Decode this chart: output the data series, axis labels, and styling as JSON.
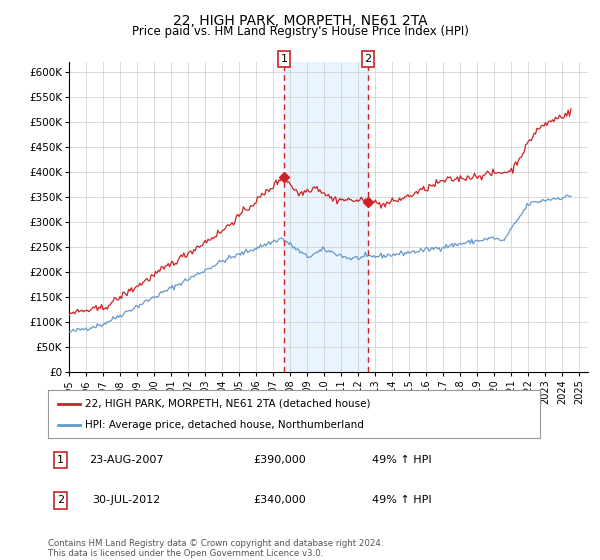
{
  "title": "22, HIGH PARK, MORPETH, NE61 2TA",
  "subtitle": "Price paid vs. HM Land Registry's House Price Index (HPI)",
  "ylim": [
    0,
    620000
  ],
  "yticks": [
    0,
    50000,
    100000,
    150000,
    200000,
    250000,
    300000,
    350000,
    400000,
    450000,
    500000,
    550000,
    600000
  ],
  "ytick_labels": [
    "£0",
    "£50K",
    "£100K",
    "£150K",
    "£200K",
    "£250K",
    "£300K",
    "£350K",
    "£400K",
    "£450K",
    "£500K",
    "£550K",
    "£600K"
  ],
  "xlim_start": 1995.0,
  "xlim_end": 2025.5,
  "xtick_years": [
    1995,
    1996,
    1997,
    1998,
    1999,
    2000,
    2001,
    2002,
    2003,
    2004,
    2005,
    2006,
    2007,
    2008,
    2009,
    2010,
    2011,
    2012,
    2013,
    2014,
    2015,
    2016,
    2017,
    2018,
    2019,
    2020,
    2021,
    2022,
    2023,
    2024,
    2025
  ],
  "hpi_color": "#6699cc",
  "property_color": "#cc2222",
  "bg_color": "#ffffff",
  "grid_color": "#cccccc",
  "sale1_date": "23-AUG-2007",
  "sale1_x": 2007.64,
  "sale1_y": 390000,
  "sale2_date": "30-JUL-2012",
  "sale2_x": 2012.58,
  "sale2_y": 340000,
  "sale1_price": "£390,000",
  "sale2_price": "£340,000",
  "sale1_hpi_pct": "49% ↑ HPI",
  "sale2_hpi_pct": "49% ↑ HPI",
  "highlight_color": "#ddeeff",
  "legend1_text": "22, HIGH PARK, MORPETH, NE61 2TA (detached house)",
  "legend2_text": "HPI: Average price, detached house, Northumberland",
  "footer": "Contains HM Land Registry data © Crown copyright and database right 2024.\nThis data is licensed under the Open Government Licence v3.0."
}
